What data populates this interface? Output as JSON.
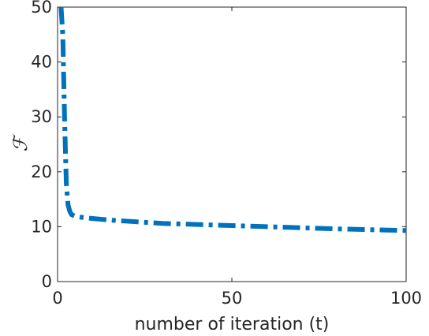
{
  "chart_data": {
    "type": "line",
    "xlabel": "number of iteration (t)",
    "ylabel": "ℱ",
    "xlim": [
      0,
      100
    ],
    "ylim": [
      0,
      50
    ],
    "xticks": [
      0,
      50,
      100
    ],
    "yticks": [
      0,
      10,
      20,
      30,
      40,
      50
    ],
    "grid": false,
    "line_style": "dash-dot",
    "series": [
      {
        "color": "#0072BD",
        "x": [
          1,
          1.5,
          2,
          2.5,
          3,
          3.5,
          4,
          5,
          6,
          8,
          10,
          15,
          20,
          25,
          30,
          40,
          50,
          60,
          70,
          80,
          90,
          100
        ],
        "y": [
          50,
          45,
          30,
          18,
          14,
          12.8,
          12.2,
          11.9,
          11.8,
          11.6,
          11.5,
          11.2,
          11.0,
          10.8,
          10.6,
          10.4,
          10.2,
          10.0,
          9.8,
          9.6,
          9.45,
          9.3
        ]
      }
    ]
  }
}
